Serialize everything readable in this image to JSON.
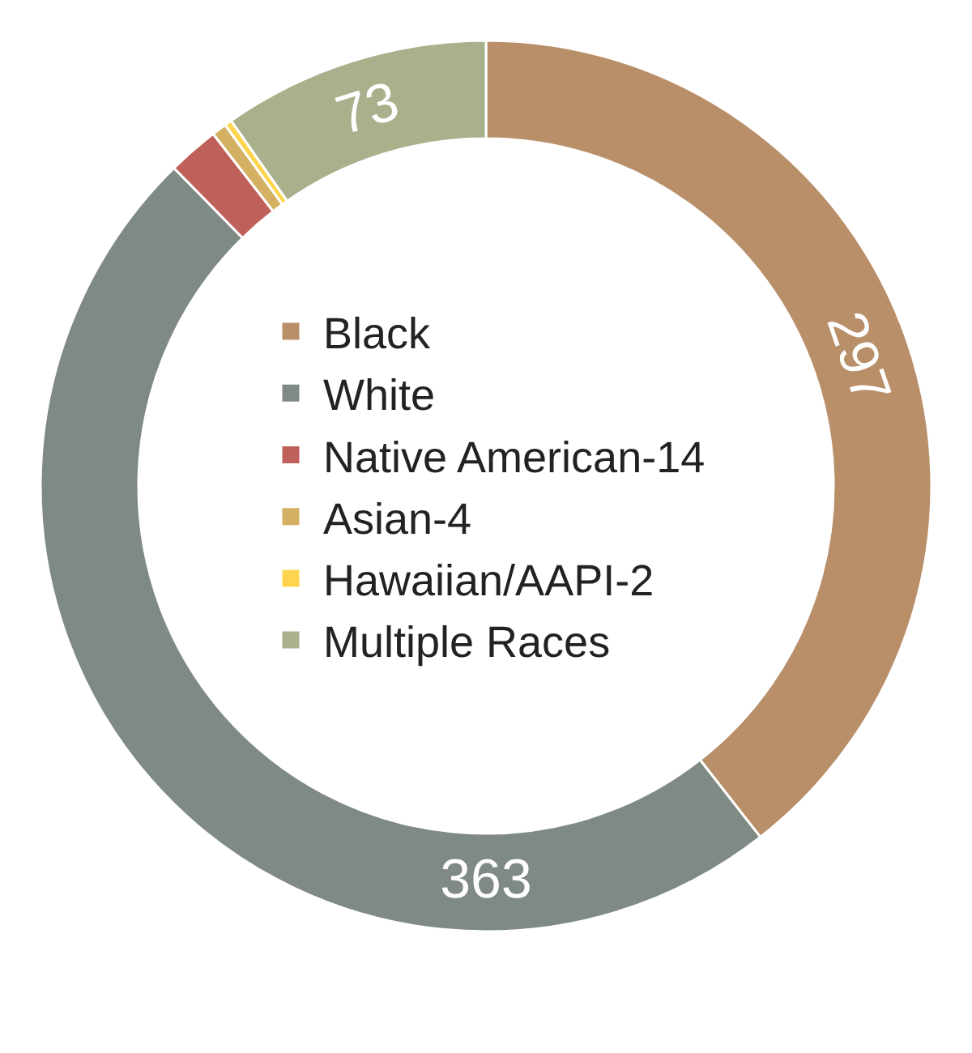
{
  "chart_data": {
    "type": "donut",
    "categories": [
      "Black",
      "White",
      "Native American-14",
      "Asian-4",
      "Hawaiian/AAPI-2",
      "Multiple Races"
    ],
    "values": [
      297,
      363,
      14,
      4,
      2,
      73
    ],
    "colors": [
      "#b98f6a",
      "#7f8a84",
      "#c0605a",
      "#d4b062",
      "#ffd54f",
      "#a8b08c"
    ],
    "value_labels": [
      "297",
      "363",
      null,
      null,
      null,
      "73"
    ],
    "legend": "center"
  }
}
